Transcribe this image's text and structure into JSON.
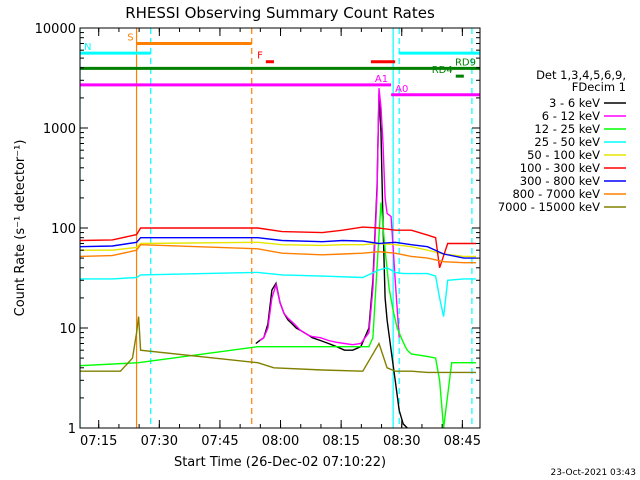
{
  "chart_data": {
    "type": "line",
    "title": "RHESSI Observing Summary Count Rates",
    "xlabel": "Start Time (26-Dec-02 07:10:22)",
    "ylabel": "Count Rate (s⁻¹ detector⁻¹)",
    "x_unit": "minutes after 07:10:22",
    "xlim": [
      0,
      99
    ],
    "ylim": [
      1,
      10000
    ],
    "yscale": "log",
    "x_ticks": [
      "07:15",
      "07:30",
      "07:45",
      "08:00",
      "08:15",
      "08:30",
      "08:45"
    ],
    "y_ticks": [
      "1",
      "10",
      "100",
      "1000",
      "10000"
    ],
    "legend_header": [
      "Det 1,3,4,5,6,9,",
      "FDecim 1"
    ],
    "footer": "23-Oct-2021 03:43",
    "data_gaps": [
      [
        15.3,
        42.5
      ],
      [
        82,
        84
      ]
    ],
    "series": [
      {
        "name": "3 - 6 keV",
        "color": "#000000",
        "x": [
          43.5,
          44.5,
          45.5,
          46.5,
          47.5,
          48.5,
          49.5,
          50.5,
          51.5,
          52.5,
          53.5,
          54.5,
          55.5,
          56.5,
          57.5,
          59.5,
          61.5,
          63.5,
          65.5,
          67.5,
          69.5,
          71.5,
          72.5,
          73.5,
          74.0,
          74.5,
          75.0,
          75.5,
          76.0,
          77.0,
          78.0,
          79.0,
          80.0,
          81.0
        ],
        "y": [
          7,
          7.5,
          8,
          11,
          24,
          28,
          18,
          14,
          12,
          11,
          10,
          9.5,
          9,
          8.5,
          8,
          7.5,
          7,
          6.5,
          6,
          6,
          6.5,
          10,
          30,
          250,
          2200,
          900,
          110,
          20,
          12,
          6,
          3,
          1.5,
          1.1,
          1.0
        ]
      },
      {
        "name": "6 - 12 keV",
        "color": "#ff00ff",
        "x": [
          44.5,
          45.5,
          46.5,
          47.5,
          48.5,
          49.5,
          50.5,
          51.5,
          52.5,
          53.5,
          54.5,
          55.5,
          56.5,
          57.5,
          59.5,
          61.5,
          63.5,
          65.5,
          67.5,
          69.5,
          71.5,
          72.5,
          73.5,
          74.0,
          74.5,
          75.0,
          75.5,
          76.0,
          77.0,
          78.0,
          79.0
        ],
        "y": [
          7.5,
          8,
          10,
          20,
          27,
          18,
          14,
          12.5,
          11.5,
          10.5,
          9.5,
          9,
          8.5,
          8.2,
          8,
          7.5,
          7.2,
          7,
          6.8,
          7,
          9,
          25,
          220,
          2500,
          1600,
          700,
          200,
          140,
          130,
          30,
          8
        ]
      },
      {
        "name": "12 - 25 keV",
        "color": "#00ff00",
        "x": [
          0,
          14.5,
          44,
          60,
          71.5,
          72.5,
          73.5,
          74.5,
          75.5,
          76.5,
          77.5,
          78.5,
          79.5,
          80.5,
          81,
          82,
          86,
          88,
          89,
          90,
          92,
          95,
          98
        ],
        "y": [
          4.2,
          4.5,
          6.5,
          6.5,
          6.5,
          8,
          40,
          180,
          60,
          25,
          15,
          10,
          8,
          6.5,
          6,
          5.5,
          5.2,
          5,
          3,
          1.0,
          4.5,
          4.5,
          4.5
        ]
      },
      {
        "name": "25 - 50 keV",
        "color": "#00ffff",
        "x": [
          0,
          8,
          14,
          15,
          44,
          50,
          60,
          70,
          74,
          76,
          78,
          80,
          82,
          84,
          86,
          88,
          89,
          90,
          91,
          95,
          98
        ],
        "y": [
          31,
          31,
          32,
          34,
          36,
          34,
          33,
          32,
          38,
          40,
          36,
          35,
          35,
          35,
          35,
          33,
          20,
          13,
          30,
          31,
          31
        ]
      },
      {
        "name": "50 - 100 keV",
        "color": "#e6e600",
        "x": [
          0,
          8,
          14,
          15,
          44,
          50,
          60,
          65,
          70,
          74,
          78,
          82,
          86,
          90,
          95,
          98
        ],
        "y": [
          60,
          60,
          64,
          70,
          72,
          68,
          67,
          68,
          68,
          70,
          68,
          65,
          60,
          55,
          52,
          52
        ]
      },
      {
        "name": "100 - 300 keV",
        "color": "#ff0000",
        "x": [
          0,
          8,
          14,
          15,
          44,
          50,
          60,
          65,
          70,
          74,
          78,
          82,
          86,
          88,
          89,
          91,
          95,
          98
        ],
        "y": [
          75,
          76,
          86,
          100,
          100,
          92,
          90,
          95,
          102,
          100,
          95,
          95,
          85,
          80,
          40,
          70,
          70,
          70
        ]
      },
      {
        "name": "300 - 800 keV",
        "color": "#0000ff",
        "x": [
          0,
          8,
          14,
          15,
          44,
          50,
          60,
          65,
          70,
          74,
          78,
          82,
          86,
          90,
          95,
          98
        ],
        "y": [
          65,
          66,
          72,
          80,
          80,
          75,
          73,
          75,
          74,
          70,
          72,
          68,
          65,
          55,
          50,
          50
        ]
      },
      {
        "name": "800 - 7000 keV",
        "color": "#ff8000",
        "x": [
          0,
          8,
          14,
          15,
          44,
          50,
          60,
          65,
          70,
          74,
          78,
          82,
          86,
          90,
          95,
          98
        ],
        "y": [
          52,
          53,
          60,
          68,
          62,
          56,
          54,
          55,
          56,
          58,
          56,
          52,
          50,
          46,
          45,
          45
        ]
      },
      {
        "name": "7000 - 15000 keV",
        "color": "#808000",
        "x": [
          0,
          10,
          13,
          14,
          14.5,
          15,
          44,
          48,
          60,
          70,
          74,
          76,
          78,
          82,
          86,
          90,
          95,
          98
        ],
        "y": [
          3.7,
          3.7,
          5,
          9,
          13,
          6,
          4.5,
          4,
          3.8,
          3.7,
          7,
          4,
          3.7,
          3.7,
          3.6,
          3.6,
          3.6,
          3.6
        ]
      }
    ],
    "vertical_markers": [
      {
        "x": 14.0,
        "color": "#ff8000",
        "style": "solid"
      },
      {
        "x": 17.5,
        "color": "#00ffff",
        "style": "dashed"
      },
      {
        "x": 42.5,
        "color": "#ff8000",
        "style": "dashed"
      },
      {
        "x": 77.5,
        "color": "#00ffff",
        "style": "solid"
      },
      {
        "x": 79.0,
        "color": "#00ffff",
        "style": "dashed"
      },
      {
        "x": 97.0,
        "color": "#00ffff",
        "style": "dashed"
      },
      {
        "x": 0.0,
        "color": "#00ffff",
        "style": "solid"
      }
    ],
    "flag_bars": [
      {
        "label": "N",
        "color": "#00ffff",
        "x1": 0,
        "x2": 17.5,
        "y": 5600
      },
      {
        "label": "",
        "color": "#00ffff",
        "x1": 79,
        "x2": 99,
        "y": 5600
      },
      {
        "label": "S",
        "color": "#ff8000",
        "x1": 14,
        "x2": 42.5,
        "y": 7000
      },
      {
        "label": "F",
        "color": "#ff0000",
        "x1": 46,
        "x2": 48,
        "y": 4600
      },
      {
        "label": "",
        "color": "#ff0000",
        "x1": 72,
        "x2": 78,
        "y": 4600
      },
      {
        "label": "RD9",
        "color": "#008000",
        "x1": 0,
        "x2": 99,
        "y": 3950
      },
      {
        "label": "RD4",
        "color": "#008000",
        "x1": 93,
        "x2": 95,
        "y": 3300
      },
      {
        "label": "A1",
        "color": "#ff00ff",
        "x1": 0,
        "x2": 77,
        "y": 2700
      },
      {
        "label": "A0",
        "color": "#ff00ff",
        "x1": 77,
        "x2": 99,
        "y": 2150
      }
    ]
  }
}
